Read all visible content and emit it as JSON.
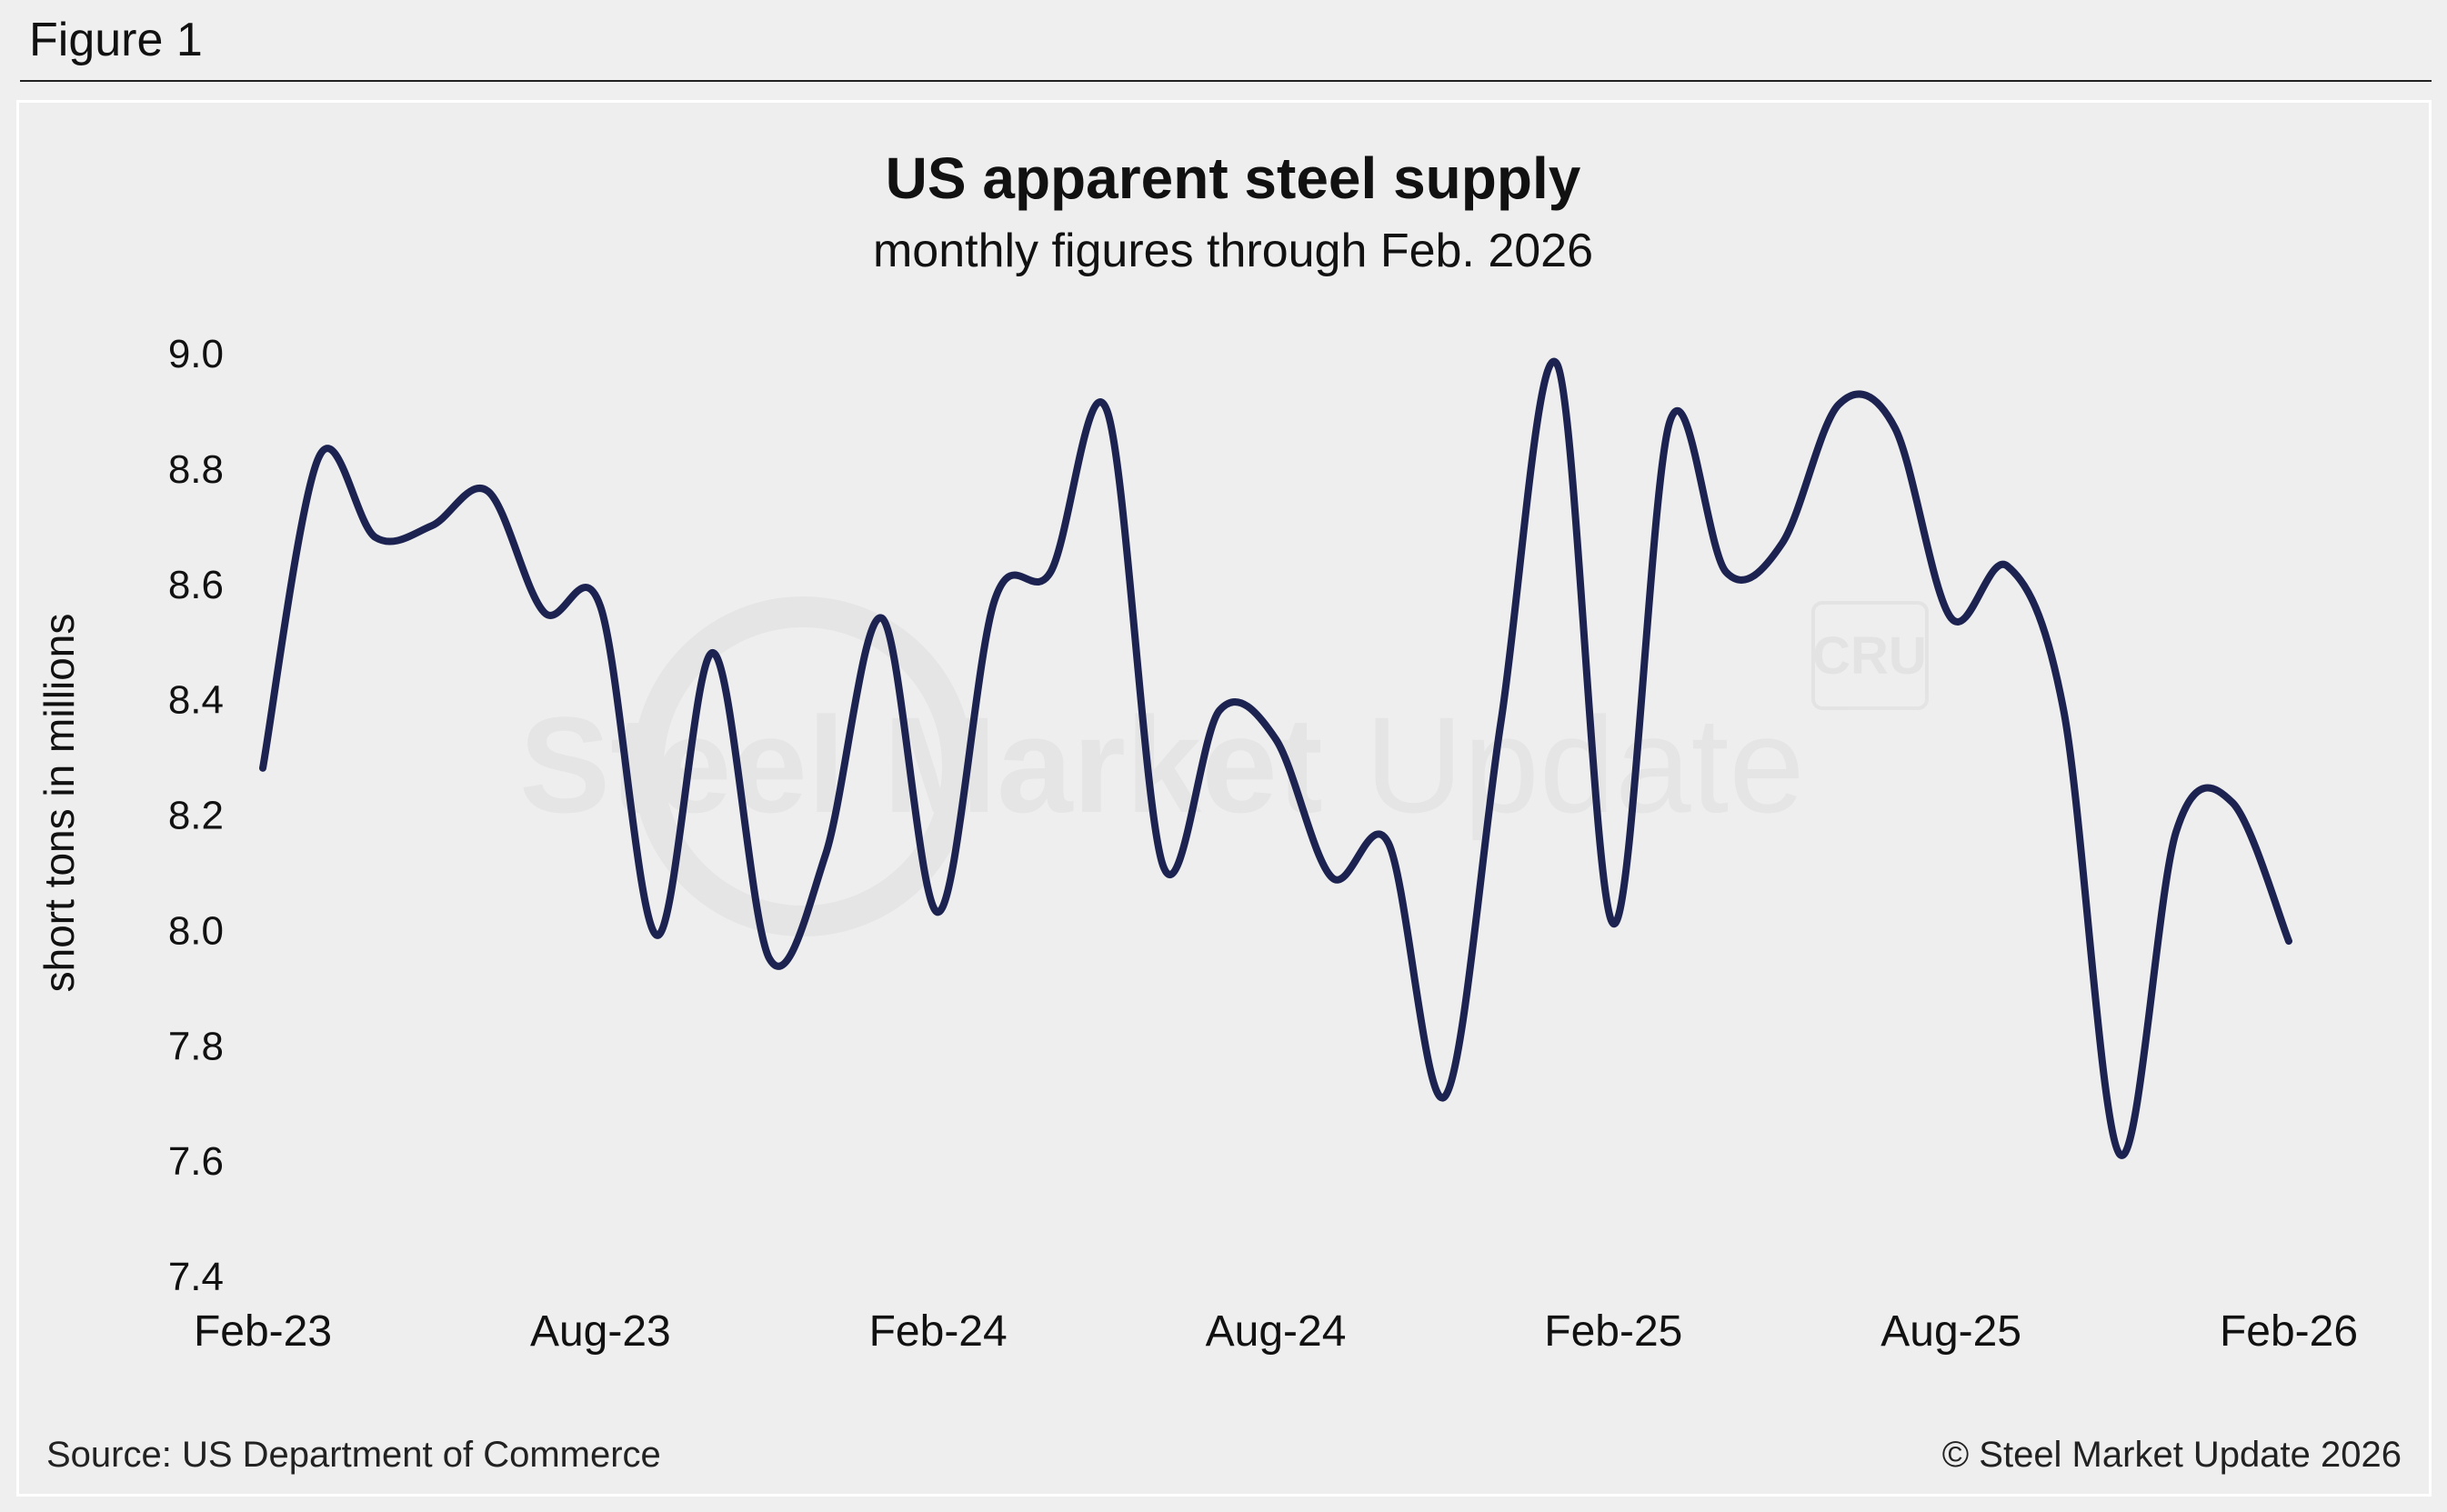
{
  "figure_label": "Figure 1",
  "source": "Source: US Department of Commerce",
  "copyright": "© Steel Market Update 2026",
  "watermark": {
    "text_bold": "Steel Market",
    "text_light": "Update",
    "badge": "CRU"
  },
  "colors": {
    "line": "#1c2350",
    "background": "#efefef",
    "text": "#111111"
  },
  "chart_data": {
    "type": "line",
    "title": "US apparent steel supply",
    "subtitle": "monthly figures through Feb. 2026",
    "xlabel": "",
    "ylabel": "short tons in millions",
    "ylim": [
      7.4,
      9.0
    ],
    "yticks": [
      "9.0",
      "8.8",
      "8.6",
      "8.4",
      "8.2",
      "8.0",
      "7.8",
      "7.6",
      "7.4"
    ],
    "xtick_labels": [
      "Feb-23",
      "Aug-23",
      "Feb-24",
      "Aug-24",
      "Feb-25",
      "Aug-25",
      "Feb-26"
    ],
    "xtick_indices": [
      0,
      6,
      12,
      18,
      24,
      30,
      36
    ],
    "grid": false,
    "series": [
      {
        "name": "US apparent steel supply",
        "x": [
          "Feb-23",
          "Mar-23",
          "Apr-23",
          "May-23",
          "Jun-23",
          "Jul-23",
          "Aug-23",
          "Sep-23",
          "Oct-23",
          "Nov-23",
          "Dec-23",
          "Jan-24",
          "Feb-24",
          "Mar-24",
          "Apr-24",
          "May-24",
          "Jun-24",
          "Jul-24",
          "Aug-24",
          "Sep-24",
          "Oct-24",
          "Nov-24",
          "Dec-24",
          "Jan-25",
          "Feb-25",
          "Mar-25",
          "Apr-25",
          "May-25",
          "Jun-25",
          "Jul-25",
          "Aug-25",
          "Sep-25",
          "Oct-25",
          "Nov-25",
          "Dec-25",
          "Jan-26",
          "Feb-26"
        ],
        "values": [
          8.28,
          8.82,
          8.68,
          8.7,
          8.76,
          8.55,
          8.56,
          7.99,
          8.48,
          7.95,
          8.13,
          8.54,
          8.03,
          8.57,
          8.62,
          8.9,
          8.11,
          8.38,
          8.33,
          8.09,
          8.15,
          7.71,
          8.36,
          8.98,
          8.01,
          8.88,
          8.62,
          8.67,
          8.91,
          8.87,
          8.54,
          8.63,
          8.38,
          7.61,
          8.17,
          8.22,
          7.98
        ]
      }
    ]
  }
}
